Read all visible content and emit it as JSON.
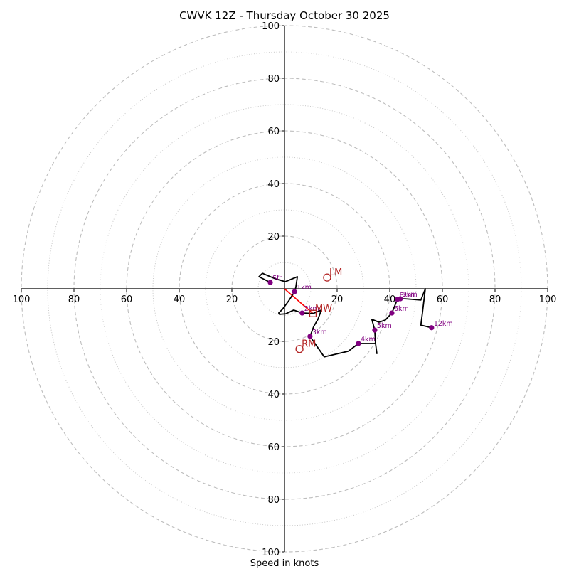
{
  "chart_data": {
    "type": "line",
    "subtype": "hodograph",
    "title": "CWVK 12Z - Thursday October 30 2025",
    "xlabel": "Speed in knots",
    "ylabel": "",
    "range_knots": [
      -100,
      100
    ],
    "rings": {
      "major": [
        20,
        40,
        60,
        80,
        100
      ],
      "minor": [
        10,
        30,
        50,
        70,
        90
      ],
      "major_style": "dashed",
      "minor_style": "dotted"
    },
    "x_ticks": [
      {
        "value": -100,
        "label": "100"
      },
      {
        "value": -80,
        "label": "80"
      },
      {
        "value": -60,
        "label": "60"
      },
      {
        "value": -40,
        "label": "40"
      },
      {
        "value": -20,
        "label": "20"
      },
      {
        "value": 20,
        "label": "20"
      },
      {
        "value": 40,
        "label": "40"
      },
      {
        "value": 60,
        "label": "60"
      },
      {
        "value": 80,
        "label": "80"
      },
      {
        "value": 100,
        "label": "100"
      }
    ],
    "y_ticks": [
      {
        "value": 100,
        "label": "100"
      },
      {
        "value": 80,
        "label": "80"
      },
      {
        "value": 60,
        "label": "60"
      },
      {
        "value": 40,
        "label": "40"
      },
      {
        "value": 20,
        "label": "20"
      },
      {
        "value": -20,
        "label": "20"
      },
      {
        "value": -40,
        "label": "40"
      },
      {
        "value": -60,
        "label": "60"
      },
      {
        "value": -80,
        "label": "80"
      },
      {
        "value": -100,
        "label": "100"
      }
    ],
    "hodograph_line": {
      "color": "#000000",
      "points_uv": [
        [
          -5.4,
          2.4
        ],
        [
          -9.7,
          4.6
        ],
        [
          -8.4,
          5.9
        ],
        [
          -3.5,
          3.8
        ],
        [
          0.3,
          2.7
        ],
        [
          4.9,
          4.6
        ],
        [
          4.3,
          0.5
        ],
        [
          3.8,
          -1.1
        ],
        [
          1.6,
          -4.6
        ],
        [
          -0.8,
          -7.8
        ],
        [
          -2.2,
          -9.2
        ],
        [
          -1.9,
          -9.7
        ],
        [
          0.5,
          -9.5
        ],
        [
          3.5,
          -8.1
        ],
        [
          6.7,
          -9.2
        ],
        [
          10.8,
          -9.4
        ],
        [
          14.0,
          -8.1
        ],
        [
          12.7,
          -11.6
        ],
        [
          11.1,
          -14.3
        ],
        [
          9.7,
          -18.1
        ],
        [
          15.1,
          -25.9
        ],
        [
          24.3,
          -23.7
        ],
        [
          28.1,
          -20.8
        ],
        [
          34.6,
          -20.8
        ],
        [
          35.1,
          -24.6
        ],
        [
          34.6,
          -20.8
        ],
        [
          34.3,
          -15.7
        ],
        [
          33.2,
          -11.6
        ],
        [
          35.9,
          -12.7
        ],
        [
          38.3,
          -11.9
        ],
        [
          40.8,
          -9.2
        ],
        [
          42.9,
          -4.0
        ],
        [
          44.0,
          -3.8
        ],
        [
          45.9,
          -3.8
        ],
        [
          51.8,
          -4.3
        ],
        [
          53.5,
          0.0
        ],
        [
          52.4,
          -9.2
        ],
        [
          51.8,
          -13.8
        ],
        [
          55.9,
          -14.8
        ]
      ]
    },
    "height_markers": [
      {
        "label": "Sfc",
        "u": -5.4,
        "v": 2.4
      },
      {
        "label": "1km",
        "u": 3.8,
        "v": -1.1
      },
      {
        "label": "2km",
        "u": 6.7,
        "v": -9.2
      },
      {
        "label": "3km",
        "u": 9.7,
        "v": -18.1
      },
      {
        "label": "4km",
        "u": 28.1,
        "v": -20.8
      },
      {
        "label": "5km",
        "u": 34.3,
        "v": -15.7
      },
      {
        "label": "6km",
        "u": 40.8,
        "v": -9.2
      },
      {
        "label": "8km",
        "u": 42.9,
        "v": -4.0
      },
      {
        "label": "9km",
        "u": 44.0,
        "v": -3.8
      },
      {
        "label": "12km",
        "u": 55.9,
        "v": -14.8
      }
    ],
    "height_marker_color": "#800080",
    "storm_motion": {
      "color": "#b22222",
      "RM": {
        "label": "RM",
        "u": 5.7,
        "v": -22.9,
        "marker": "circle"
      },
      "LM": {
        "label": "LM",
        "u": 16.2,
        "v": 4.3,
        "marker": "circle"
      },
      "MW": {
        "label": "MW",
        "u": 10.8,
        "v": -9.4,
        "marker": "square"
      }
    },
    "shear_vector": {
      "color": "#ff0000",
      "from": [
        0,
        0
      ],
      "to": [
        10.8,
        -9.4
      ]
    },
    "grid": true,
    "legend": "none"
  }
}
